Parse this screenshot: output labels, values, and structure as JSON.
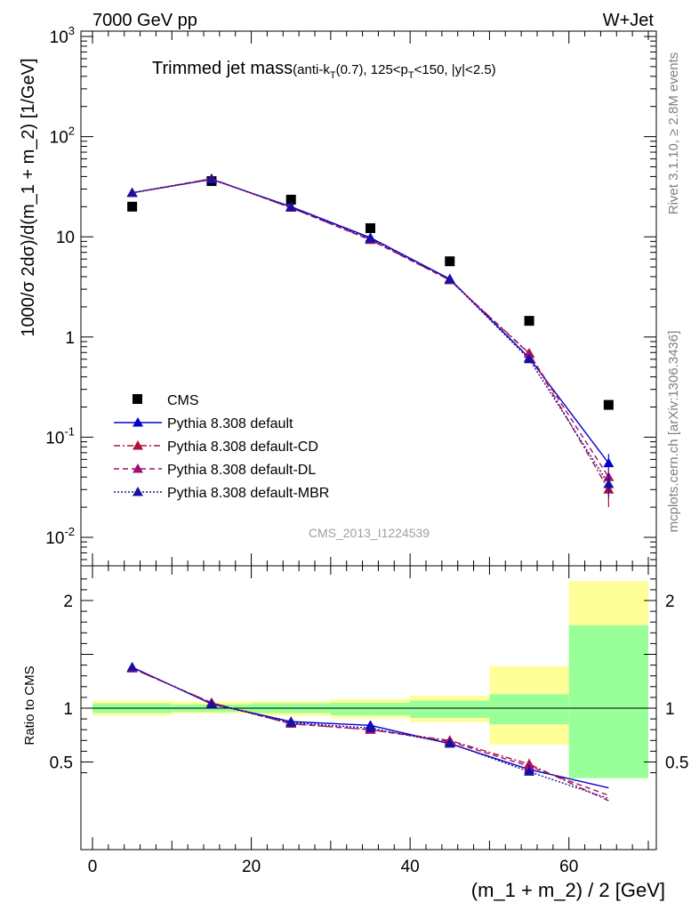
{
  "header": {
    "left": "7000 GeV pp",
    "right": "W+Jet"
  },
  "title": {
    "main": "Trimmed jet mass",
    "sub_pre": "(anti-k",
    "sub_T1": "T",
    "sub_mid": "(0.7), 125<p",
    "sub_T2": "T",
    "sub_post": "<150, |y|<2.5)"
  },
  "watermark": "CMS_2013_I1224539",
  "side_labels": {
    "rivet": "Rivet 3.1.10, ≥ 2.8M events",
    "mcplots": "mcplots.cern.ch [arXiv:1306.3436]"
  },
  "colors": {
    "data": "#000000",
    "default": "#0000cc",
    "cd": "#b0103a",
    "dl": "#a01070",
    "mbr": "#1a10a0",
    "band_inner": "#99ff99",
    "band_outer": "#ffff99"
  },
  "chart_data": [
    {
      "type": "scatter",
      "panel": "main",
      "ylabel": "1000/σ 2dσ)/d(m_1 + m_2) [1/GeV]",
      "yscale": "log",
      "ylim": [
        0.005,
        1200
      ],
      "xlim": [
        -2,
        72
      ],
      "yticks": [
        {
          "value": 0.01,
          "label": "10",
          "exp": "-2"
        },
        {
          "value": 0.1,
          "label": "10",
          "exp": "-1"
        },
        {
          "value": 1,
          "label": "1",
          "exp": ""
        },
        {
          "value": 10,
          "label": "10",
          "exp": ""
        },
        {
          "value": 100,
          "label": "10",
          "exp": "2"
        },
        {
          "value": 1000,
          "label": "10",
          "exp": "3"
        }
      ],
      "legend_position": "lower-left",
      "x": [
        5,
        15,
        25,
        35,
        45,
        55,
        65
      ],
      "series": [
        {
          "name": "CMS",
          "key": "data",
          "style": "square",
          "values": [
            20,
            36,
            23.5,
            12.2,
            5.7,
            1.45,
            0.21
          ]
        },
        {
          "name": "Pythia 8.308 default",
          "key": "default",
          "style": "solid",
          "values": [
            27.5,
            37.5,
            20,
            9.8,
            3.8,
            0.62,
            0.055
          ],
          "last_err": [
            0.045,
            0.068
          ]
        },
        {
          "name": "Pythia 8.308 default-CD",
          "key": "cd",
          "style": "dashdot",
          "values": [
            27.5,
            38,
            19.5,
            9.4,
            3.7,
            0.69,
            0.03
          ],
          "last_err": [
            0.02,
            0.042
          ]
        },
        {
          "name": "Pythia 8.308 default-DL",
          "key": "dl",
          "style": "dashed",
          "values": [
            27.5,
            38,
            19.5,
            9.3,
            3.7,
            0.68,
            0.04
          ],
          "last_err": [
            0.03,
            0.05
          ]
        },
        {
          "name": "Pythia 8.308 default-MBR",
          "key": "mbr",
          "style": "dotted",
          "values": [
            27.5,
            37.5,
            19.8,
            9.6,
            3.75,
            0.6,
            0.034
          ],
          "last_err": [
            0.025,
            0.044
          ]
        }
      ]
    },
    {
      "type": "line",
      "panel": "ratio",
      "ylabel": "Ratio to CMS",
      "xlabel": "(m_1 + m_2) / 2 [GeV]",
      "xlim": [
        -2,
        72
      ],
      "ylim": [
        0.35,
        2.3
      ],
      "xticks": [
        0,
        20,
        40,
        60
      ],
      "yticks": [
        0.5,
        1,
        2
      ],
      "x": [
        5,
        15,
        25,
        35,
        45,
        55,
        65
      ],
      "bands": [
        {
          "x0": 0,
          "x1": 10,
          "inner": [
            0.955,
            1.045
          ],
          "outer": [
            0.93,
            1.07
          ]
        },
        {
          "x0": 10,
          "x1": 20,
          "inner": [
            0.965,
            1.035
          ],
          "outer": [
            0.95,
            1.06
          ]
        },
        {
          "x0": 20,
          "x1": 30,
          "inner": [
            0.955,
            1.045
          ],
          "outer": [
            0.93,
            1.065
          ]
        },
        {
          "x0": 30,
          "x1": 40,
          "inner": [
            0.935,
            1.05
          ],
          "outer": [
            0.905,
            1.085
          ]
        },
        {
          "x0": 40,
          "x1": 50,
          "inner": [
            0.91,
            1.07
          ],
          "outer": [
            0.87,
            1.115
          ]
        },
        {
          "x0": 50,
          "x1": 60,
          "inner": [
            0.85,
            1.13
          ],
          "outer": [
            0.66,
            1.39
          ]
        },
        {
          "x0": 60,
          "x1": 70,
          "inner": [
            0.35,
            1.77
          ],
          "outer": [
            0.35,
            2.18
          ]
        }
      ],
      "series": [
        {
          "name": "Pythia 8.308 default",
          "key": "default",
          "style": "solid",
          "values": [
            1.38,
            1.04,
            0.875,
            0.84,
            0.67,
            0.43,
            0.26
          ]
        },
        {
          "name": "Pythia 8.308 default-CD",
          "key": "cd",
          "style": "dashdot",
          "values": [
            1.37,
            1.05,
            0.855,
            0.8,
            0.7,
            0.48,
            0.14
          ]
        },
        {
          "name": "Pythia 8.308 default-DL",
          "key": "dl",
          "style": "dashed",
          "values": [
            1.37,
            1.05,
            0.855,
            0.8,
            0.69,
            0.46,
            0.19
          ]
        },
        {
          "name": "Pythia 8.308 default-MBR",
          "key": "mbr",
          "style": "dotted",
          "values": [
            1.38,
            1.04,
            0.865,
            0.815,
            0.675,
            0.41,
            0.16
          ]
        }
      ]
    }
  ]
}
